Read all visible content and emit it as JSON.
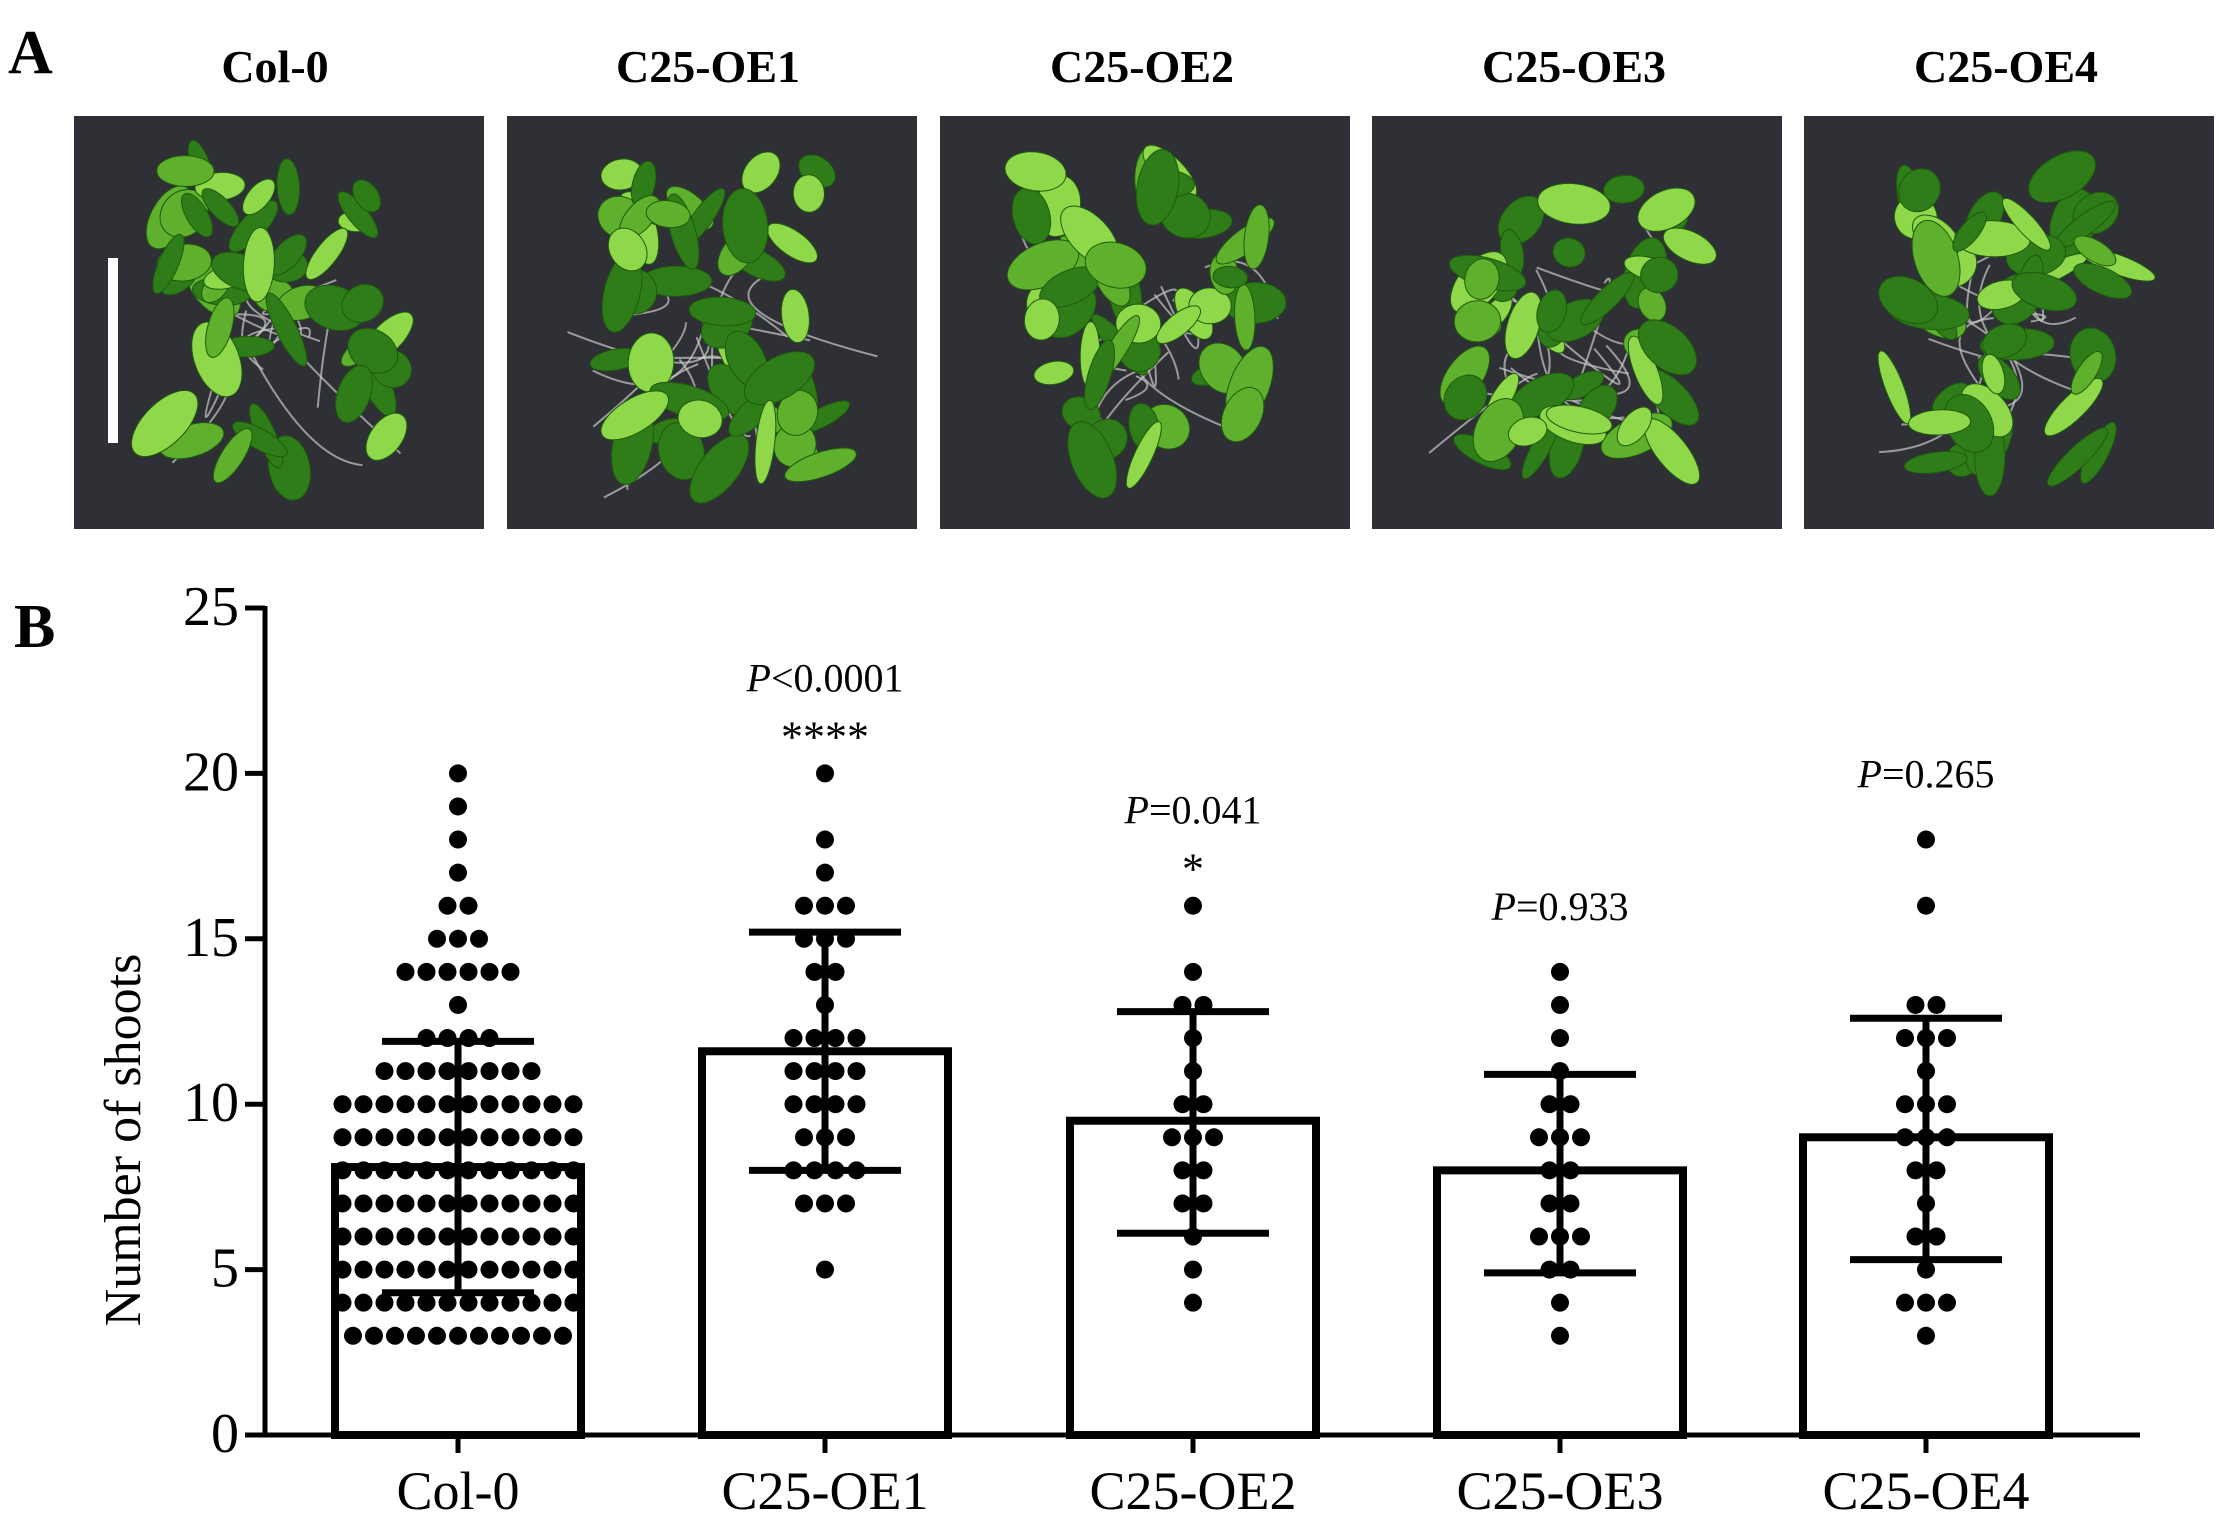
{
  "panel_labels": {
    "a": "A",
    "b": "B"
  },
  "photos": [
    {
      "label": "Col-0"
    },
    {
      "label": "C25-OE1"
    },
    {
      "label": "C25-OE2"
    },
    {
      "label": "C25-OE3"
    },
    {
      "label": "C25-OE4"
    }
  ],
  "colors": {
    "photo_background": "#2e3036",
    "leaf_dark": "#2f7d18",
    "leaf_light": "#8fd84a",
    "ink": "#000000"
  },
  "chart_data": {
    "type": "bar",
    "ylabel": "Number of shoots",
    "xlabel": "",
    "ylim": [
      0,
      25
    ],
    "yticks": [
      0,
      5,
      10,
      15,
      20,
      25
    ],
    "categories": [
      "Col-0",
      "C25-OE1",
      "C25-OE2",
      "C25-OE3",
      "C25-OE4"
    ],
    "means": [
      8.1,
      11.6,
      9.5,
      8.0,
      9.0
    ],
    "sd_upper": [
      11.9,
      15.2,
      12.8,
      10.9,
      12.6
    ],
    "sd_lower": [
      4.3,
      8.0,
      6.1,
      4.9,
      5.3
    ],
    "p_values": [
      "",
      "<0.0001",
      "=0.041",
      "=0.933",
      "=0.265"
    ],
    "p_symbol": "P",
    "stars": [
      "",
      "****",
      "*",
      "",
      ""
    ],
    "points": [
      {
        "category": "Col-0",
        "y": [
          20,
          19,
          18,
          17,
          16,
          16,
          15,
          15,
          15,
          14,
          14,
          14,
          14,
          14,
          14,
          13,
          12,
          12,
          12,
          12,
          11,
          11,
          11,
          11,
          11,
          11,
          11,
          11,
          10,
          10,
          10,
          10,
          10,
          10,
          10,
          10,
          10,
          10,
          10,
          10,
          9,
          9,
          9,
          9,
          9,
          9,
          9,
          9,
          9,
          9,
          9,
          9,
          8,
          8,
          8,
          8,
          8,
          8,
          8,
          8,
          8,
          8,
          8,
          8,
          7,
          7,
          7,
          7,
          7,
          7,
          7,
          7,
          7,
          7,
          7,
          7,
          6,
          6,
          6,
          6,
          6,
          6,
          6,
          6,
          6,
          6,
          6,
          6,
          5,
          5,
          5,
          5,
          5,
          5,
          5,
          5,
          5,
          5,
          5,
          5,
          4,
          4,
          4,
          4,
          4,
          4,
          4,
          4,
          4,
          4,
          4,
          4,
          3,
          3,
          3,
          3,
          3,
          3,
          3,
          3,
          3,
          3,
          3
        ]
      },
      {
        "category": "C25-OE1",
        "y": [
          20,
          18,
          17,
          16,
          16,
          16,
          15,
          15,
          15,
          14,
          14,
          13,
          12,
          12,
          12,
          12,
          11,
          11,
          11,
          11,
          10,
          10,
          10,
          10,
          9,
          9,
          9,
          8,
          8,
          8,
          8,
          7,
          7,
          7,
          5
        ]
      },
      {
        "category": "C25-OE2",
        "y": [
          16,
          14,
          13,
          13,
          12,
          11,
          10,
          10,
          9,
          9,
          9,
          8,
          8,
          7,
          7,
          6,
          5,
          4
        ]
      },
      {
        "category": "C25-OE3",
        "y": [
          14,
          13,
          12,
          11,
          10,
          10,
          9,
          9,
          9,
          8,
          8,
          7,
          7,
          6,
          6,
          6,
          5,
          5,
          4,
          3
        ]
      },
      {
        "category": "C25-OE4",
        "y": [
          18,
          16,
          13,
          13,
          12,
          12,
          12,
          11,
          10,
          10,
          10,
          9,
          9,
          9,
          8,
          8,
          7,
          6,
          6,
          5,
          4,
          4,
          4,
          3
        ]
      }
    ]
  }
}
